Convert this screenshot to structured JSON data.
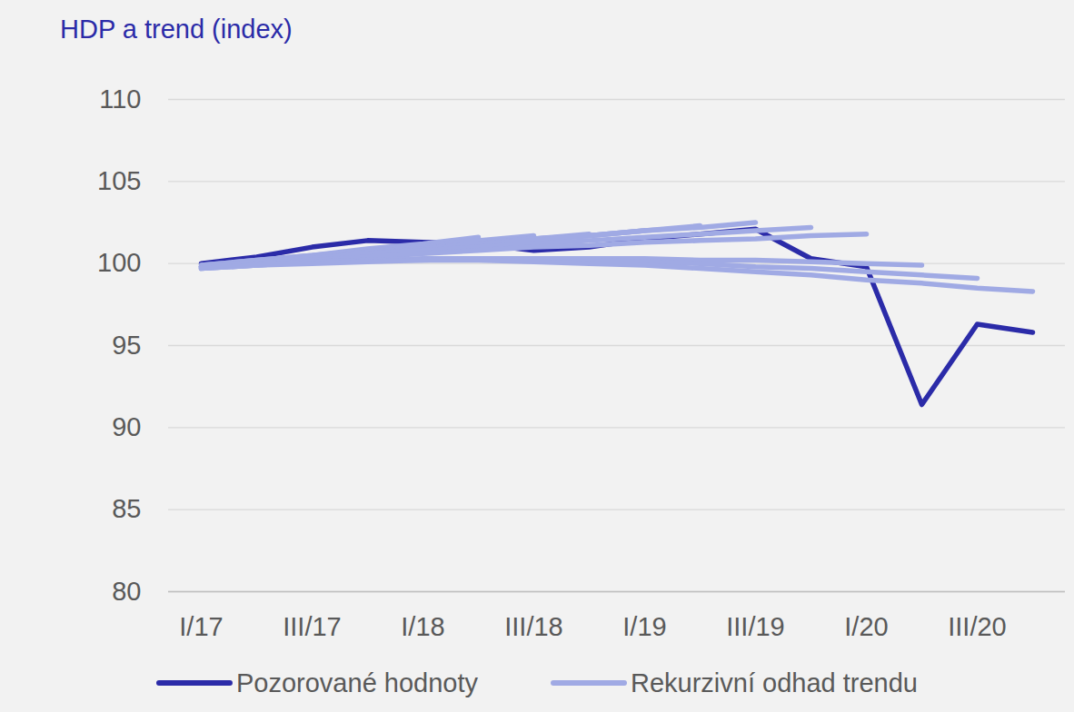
{
  "chart_data": {
    "type": "line",
    "title": "HDP a trend (index)",
    "categories": [
      "I/17",
      null,
      "III/17",
      null,
      "I/18",
      null,
      "III/18",
      null,
      "I/19",
      null,
      "III/19",
      null,
      "I/20",
      null,
      "III/20",
      null
    ],
    "series": [
      {
        "name": "Pozorované hodnoty",
        "color": "#2b2ba8",
        "values": [
          100.0,
          100.4,
          101.0,
          101.4,
          101.3,
          101.2,
          100.8,
          101.0,
          101.5,
          101.8,
          102.1,
          100.3,
          99.8,
          91.4,
          96.3,
          95.8
        ]
      },
      {
        "name": "Rekurzivní odhad trendu",
        "color": "#a0aae4",
        "values": [
          99.9,
          100.2,
          100.5,
          100.9,
          101.2,
          101.6,
          null,
          null,
          null,
          null,
          null,
          null,
          null,
          null,
          null,
          null
        ]
      },
      {
        "name": "Rekurzivní odhad trendu",
        "color": "#a0aae4",
        "values": [
          99.9,
          100.2,
          100.5,
          100.8,
          101.1,
          101.4,
          101.7,
          null,
          null,
          null,
          null,
          null,
          null,
          null,
          null,
          null
        ]
      },
      {
        "name": "Rekurzivní odhad trendu",
        "color": "#a0aae4",
        "values": [
          99.8,
          100.1,
          100.4,
          100.7,
          101.0,
          101.2,
          101.5,
          101.8,
          null,
          null,
          null,
          null,
          null,
          null,
          null,
          null
        ]
      },
      {
        "name": "Rekurzivní odhad trendu",
        "color": "#a0aae4",
        "values": [
          99.8,
          100.1,
          100.4,
          100.6,
          100.9,
          101.2,
          101.5,
          101.7,
          102.0,
          null,
          null,
          null,
          null,
          null,
          null,
          null
        ]
      },
      {
        "name": "Rekurzivní odhad trendu",
        "color": "#a0aae4",
        "values": [
          99.8,
          100.1,
          100.4,
          100.6,
          100.9,
          101.2,
          101.5,
          101.7,
          102.0,
          102.3,
          null,
          null,
          null,
          null,
          null,
          null
        ]
      },
      {
        "name": "Rekurzivní odhad trendu",
        "color": "#a0aae4",
        "values": [
          99.8,
          100.1,
          100.3,
          100.6,
          100.9,
          101.2,
          101.4,
          101.7,
          102.0,
          102.2,
          102.5,
          null,
          null,
          null,
          null,
          null
        ]
      },
      {
        "name": "Rekurzivní odhad trendu",
        "color": "#a0aae4",
        "values": [
          99.8,
          100.1,
          100.3,
          100.6,
          100.8,
          101.0,
          101.2,
          101.4,
          101.6,
          101.8,
          102.0,
          102.2,
          null,
          null,
          null,
          null
        ]
      },
      {
        "name": "Rekurzivní odhad trendu",
        "color": "#a0aae4",
        "values": [
          99.8,
          100.0,
          100.2,
          100.4,
          100.6,
          100.8,
          101.0,
          101.1,
          101.3,
          101.4,
          101.5,
          101.7,
          101.8,
          null,
          null,
          null
        ]
      },
      {
        "name": "Rekurzivní odhad trendu",
        "color": "#a0aae4",
        "values": [
          99.7,
          99.9,
          100.1,
          100.2,
          100.3,
          100.3,
          100.3,
          100.3,
          100.3,
          100.2,
          100.2,
          100.1,
          100.0,
          99.9,
          null,
          null
        ]
      },
      {
        "name": "Rekurzivní odhad trendu",
        "color": "#a0aae4",
        "values": [
          99.7,
          99.9,
          100.1,
          100.2,
          100.2,
          100.3,
          100.2,
          100.2,
          100.1,
          100.0,
          99.8,
          99.7,
          99.5,
          99.3,
          99.1,
          null
        ]
      },
      {
        "name": "Rekurzivní odhad trendu",
        "color": "#a0aae4",
        "values": [
          99.7,
          99.9,
          100.0,
          100.1,
          100.2,
          100.2,
          100.1,
          100.0,
          99.9,
          99.7,
          99.5,
          99.3,
          99.0,
          98.8,
          98.5,
          98.3
        ]
      }
    ],
    "ylim": [
      80,
      110
    ],
    "yticks": [
      80,
      85,
      90,
      95,
      100,
      105,
      110
    ],
    "grid": true,
    "legend": "bottom"
  }
}
